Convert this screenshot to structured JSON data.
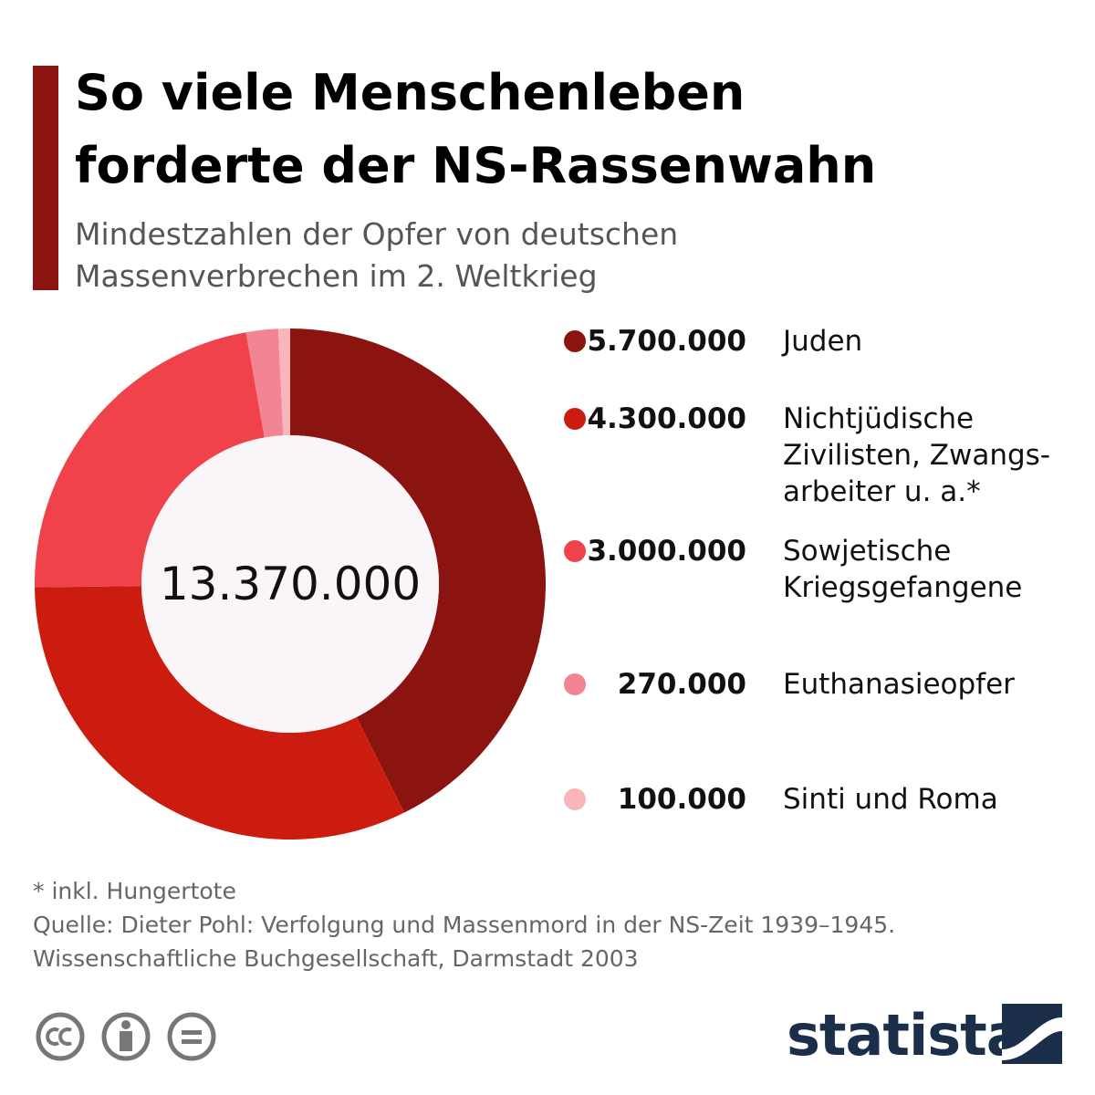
{
  "chart_data": {
    "type": "donut",
    "title": [
      "So viele Menschenleben",
      "forderte der NS-Rassenwahn"
    ],
    "subtitle": [
      "Mindestzahlen der Opfer von deutschen",
      "Massenverbrechen im 2. Weltkrieg"
    ],
    "categories": [
      "Juden",
      "Nichtjüdische\nZivilisten, Zwangs-\narbeiter u. a.*",
      "Sowjetische\nKriegsgefangene",
      "Euthanasieopfer",
      "Sinti und Roma"
    ],
    "values": [
      5700000,
      4300000,
      3000000,
      270000,
      100000
    ],
    "value_labels": [
      "5.700.000",
      "4.300.000",
      "3.000.000",
      "270.000",
      "100.000"
    ],
    "colors": [
      "#8b1410",
      "#cc1c10",
      "#ef424b",
      "#f28494",
      "#f9b5b8"
    ],
    "center_label": "13.370.000"
  },
  "footer": {
    "note": "* inkl. Hungertote",
    "source": [
      "Quelle: Dieter Pohl: Verfolgung und Massenmord in der NS-Zeit 1939–1945.",
      "Wissenschaftliche Buchgesellschaft, Darmstadt 2003"
    ],
    "logo": "statista"
  }
}
